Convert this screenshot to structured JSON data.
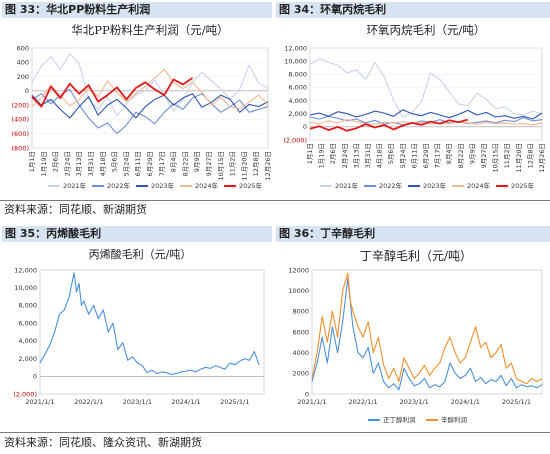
{
  "headers": {
    "fig33": "图 33：华北PP粉料生产利润",
    "fig34": "图 34：环氧丙烷毛利",
    "fig35": "图 35：丙烯酸毛利",
    "fig36": "图 36：丁辛醇毛利"
  },
  "sources": {
    "top": "资料来源：同花顺、新湖期货",
    "bottom": "资料来源：同花顺、隆众资讯、新湖期货"
  },
  "chart_data": [
    {
      "id": "fig33",
      "type": "line",
      "title": "华北PP粉料生产利润（元/吨）",
      "ylim": [
        -800,
        600
      ],
      "yticks": [
        600,
        400,
        200,
        0,
        -200,
        -400,
        -600,
        -800
      ],
      "ytick_labels": [
        "600",
        "400",
        "200",
        "0",
        "(200)",
        "(400)",
        "(600)",
        "(800)"
      ],
      "xtick_labels": [
        "1月1日",
        "1月19日",
        "2月6日",
        "2月24日",
        "3月13日",
        "3月31日",
        "4月18日",
        "5月6日",
        "5月24日",
        "6月11日",
        "6月29日",
        "7月17日",
        "8月4日",
        "8月22日",
        "9月9日",
        "9月27日",
        "10月15日",
        "11月2日",
        "11月20日",
        "12月8日",
        "12月26日"
      ],
      "legend_position": "bottom",
      "series": [
        {
          "name": "2021年",
          "color": "#c9d3ea",
          "values": [
            120,
            350,
            480,
            300,
            520,
            380,
            -120,
            -260,
            -80,
            -350,
            -180,
            -60,
            0,
            150,
            -60,
            -280,
            -120,
            120,
            260,
            140,
            30,
            -120,
            20,
            360,
            110,
            30
          ]
        },
        {
          "name": "2022年",
          "color": "#6f8ed6",
          "values": [
            -120,
            -40,
            -180,
            -60,
            20,
            -200,
            -380,
            -520,
            -450,
            -600,
            -480,
            -300,
            -360,
            -460,
            -300,
            -180,
            -260,
            -100,
            -40,
            -180,
            -300,
            -220,
            -130,
            -300,
            -260,
            -220
          ]
        },
        {
          "name": "2023年",
          "color": "#2e55b0",
          "values": [
            -60,
            -200,
            -120,
            -260,
            -380,
            -220,
            -80,
            -340,
            -200,
            -120,
            -240,
            -380,
            -220,
            -120,
            -60,
            -200,
            -100,
            -40,
            -230,
            -160,
            -60,
            -120,
            -300,
            -190,
            -220,
            -150
          ]
        },
        {
          "name": "2024年",
          "color": "#f2b88f",
          "values": [
            -220,
            -100,
            80,
            -60,
            -210,
            -120,
            40,
            -80,
            140,
            -20,
            -150,
            -40,
            60,
            180,
            300,
            120,
            30,
            120,
            -20,
            -200,
            -90,
            -220,
            -250,
            -160,
            -60,
            -200
          ]
        },
        {
          "name": "2025年",
          "color": "#e31a1c",
          "values": [
            -80,
            -220,
            60,
            -100,
            100,
            -40,
            80,
            -150,
            -60,
            50,
            -120,
            40,
            120,
            20,
            -60,
            160,
            90,
            180
          ]
        }
      ]
    },
    {
      "id": "fig34",
      "type": "line",
      "title": "环氧丙烷毛利（元/吨）",
      "ylim": [
        -2000,
        12000
      ],
      "yticks": [
        12000,
        10000,
        8000,
        6000,
        4000,
        2000,
        0,
        -2000
      ],
      "ytick_labels": [
        "12,000",
        "10,000",
        "8,000",
        "6,000",
        "4,000",
        "2,000",
        "0",
        "(2,000)"
      ],
      "xtick_labels": [
        "1月1日",
        "1月19日",
        "2月6日",
        "2月24日",
        "3月13日",
        "3月31日",
        "4月18日",
        "5月6日",
        "5月24日",
        "6月11日",
        "6月29日",
        "7月17日",
        "8月4日",
        "8月22日",
        "9月9日",
        "9月27日",
        "10月15日",
        "11月2日",
        "11月20日",
        "12月8日",
        "12月26日"
      ],
      "legend_position": "bottom",
      "series": [
        {
          "name": "2021年",
          "color": "#c9d3ea",
          "values": [
            9500,
            10400,
            9800,
            9400,
            8200,
            8700,
            7200,
            9800,
            7600,
            4100,
            1500,
            2200,
            3800,
            8200,
            7200,
            5400,
            3500,
            3200,
            5100,
            4200,
            2800,
            3000,
            2000,
            1800,
            2400,
            2000
          ]
        },
        {
          "name": "2022年",
          "color": "#6f8ed6",
          "values": [
            1500,
            1200,
            1600,
            1300,
            900,
            1200,
            600,
            1000,
            400,
            700,
            300,
            500,
            900,
            700,
            1100,
            600,
            800,
            500,
            700,
            900,
            600,
            1000,
            800,
            1400,
            900,
            1100
          ]
        },
        {
          "name": "2023年",
          "color": "#2e55b0",
          "values": [
            1800,
            2100,
            1600,
            2300,
            2000,
            1500,
            1900,
            2400,
            2100,
            1600,
            2600,
            2000,
            1700,
            2200,
            1800,
            1400,
            1900,
            2500,
            1800,
            2200,
            1500,
            1700,
            1300,
            1600,
            1200,
            2100
          ]
        },
        {
          "name": "2024年",
          "color": "#f2b88f",
          "values": [
            700,
            500,
            900,
            600,
            1100,
            800,
            500,
            400,
            700,
            600,
            800,
            500,
            700,
            400,
            600,
            500,
            800,
            600,
            400,
            700,
            500,
            600,
            400,
            500,
            300,
            600
          ]
        },
        {
          "name": "2025年",
          "color": "#e31a1c",
          "values": [
            -300,
            100,
            -500,
            0,
            -600,
            -200,
            400,
            -100,
            300,
            -400,
            200,
            600,
            300,
            800,
            500,
            1000,
            700,
            1100
          ]
        }
      ]
    },
    {
      "id": "fig35",
      "type": "line",
      "title": "丙烯酸毛利（元/吨）",
      "ylim": [
        -2000,
        12000
      ],
      "yticks": [
        12000,
        10000,
        8000,
        6000,
        4000,
        2000,
        0,
        -2000
      ],
      "ytick_labels": [
        "12,000",
        "10,000",
        "8,000",
        "6,000",
        "4,000",
        "2,000",
        "0",
        "(2,000)"
      ],
      "xtick_labels": [
        "2021/1/1",
        "2022/1/1",
        "2023/1/1",
        "2024/1/1",
        "2025/1/1"
      ],
      "x_start": 2021.0,
      "x_end": 2025.6,
      "series": [
        {
          "name": "",
          "color": "#4a90d9",
          "x": [
            2021.0,
            2021.1,
            2021.2,
            2021.3,
            2021.4,
            2021.5,
            2021.6,
            2021.7,
            2021.75,
            2021.8,
            2021.85,
            2021.9,
            2022.0,
            2022.1,
            2022.2,
            2022.3,
            2022.4,
            2022.5,
            2022.6,
            2022.7,
            2022.8,
            2022.9,
            2023.0,
            2023.1,
            2023.2,
            2023.3,
            2023.4,
            2023.5,
            2023.6,
            2023.7,
            2023.8,
            2023.9,
            2024.0,
            2024.1,
            2024.2,
            2024.3,
            2024.4,
            2024.5,
            2024.6,
            2024.7,
            2024.8,
            2024.9,
            2025.0,
            2025.1,
            2025.2,
            2025.3,
            2025.4,
            2025.5
          ],
          "values": [
            1500,
            2500,
            3500,
            5000,
            7000,
            7500,
            9000,
            11700,
            9500,
            10500,
            8000,
            8500,
            7000,
            8000,
            6500,
            7500,
            5000,
            6000,
            3000,
            3800,
            1800,
            2200,
            1500,
            1200,
            400,
            700,
            300,
            500,
            400,
            200,
            300,
            500,
            600,
            700,
            500,
            800,
            1000,
            900,
            1200,
            1000,
            800,
            1500,
            1300,
            1700,
            2000,
            1800,
            2800,
            1300
          ]
        }
      ]
    },
    {
      "id": "fig36",
      "type": "line",
      "title": "丁辛醇毛利（元/吨）",
      "ylim": [
        0,
        12000
      ],
      "yticks": [
        12000,
        10000,
        8000,
        6000,
        4000,
        2000,
        0
      ],
      "ytick_labels": [
        "12000",
        "10000",
        "8000",
        "6000",
        "4000",
        "2000",
        "0"
      ],
      "xtick_labels": [
        "2021/1/1",
        "2022/1/1",
        "2023/1/1",
        "2024/1/1",
        "2025/1/1"
      ],
      "x_start": 2021.0,
      "x_end": 2025.5,
      "legend_position": "bottom",
      "series": [
        {
          "name": "正丁醇利润",
          "color": "#4a90d9",
          "x": [
            2021.0,
            2021.1,
            2021.2,
            2021.3,
            2021.4,
            2021.5,
            2021.6,
            2021.7,
            2021.75,
            2021.8,
            2021.9,
            2022.0,
            2022.1,
            2022.2,
            2022.3,
            2022.4,
            2022.5,
            2022.6,
            2022.7,
            2022.8,
            2022.9,
            2023.0,
            2023.1,
            2023.2,
            2023.3,
            2023.4,
            2023.5,
            2023.6,
            2023.7,
            2023.8,
            2023.9,
            2024.0,
            2024.1,
            2024.2,
            2024.3,
            2024.4,
            2024.5,
            2024.6,
            2024.7,
            2024.8,
            2024.9,
            2025.0,
            2025.1,
            2025.2,
            2025.3,
            2025.4,
            2025.5
          ],
          "values": [
            1200,
            3000,
            5500,
            3000,
            6500,
            4000,
            7000,
            11200,
            9000,
            6500,
            4000,
            3500,
            4500,
            2000,
            3000,
            1200,
            600,
            1000,
            400,
            2500,
            1500,
            800,
            1000,
            1500,
            600,
            900,
            700,
            1200,
            3000,
            2000,
            1500,
            1800,
            2500,
            1200,
            1600,
            1000,
            1400,
            1200,
            1800,
            800,
            1500,
            600,
            900,
            700,
            800,
            600,
            900
          ]
        },
        {
          "name": "辛醇利润",
          "color": "#f28e2b",
          "x": [
            2021.0,
            2021.1,
            2021.2,
            2021.3,
            2021.4,
            2021.5,
            2021.6,
            2021.7,
            2021.75,
            2021.8,
            2021.9,
            2022.0,
            2022.1,
            2022.2,
            2022.3,
            2022.4,
            2022.5,
            2022.6,
            2022.7,
            2022.8,
            2022.9,
            2023.0,
            2023.1,
            2023.2,
            2023.3,
            2023.4,
            2023.5,
            2023.6,
            2023.7,
            2023.8,
            2023.9,
            2024.0,
            2024.1,
            2024.2,
            2024.3,
            2024.4,
            2024.5,
            2024.6,
            2024.7,
            2024.8,
            2024.9,
            2025.0,
            2025.1,
            2025.2,
            2025.3,
            2025.4,
            2025.5
          ],
          "values": [
            1500,
            4000,
            7500,
            5000,
            8000,
            5500,
            10000,
            11700,
            9000,
            8000,
            6500,
            5500,
            7000,
            4000,
            5500,
            2800,
            1500,
            2500,
            1200,
            3500,
            2500,
            1500,
            2000,
            2800,
            1800,
            2500,
            3000,
            4500,
            5500,
            4000,
            3000,
            3500,
            5000,
            6500,
            4500,
            5000,
            3500,
            4000,
            4800,
            2500,
            3000,
            1500,
            1200,
            1000,
            1500,
            1200,
            1500
          ]
        }
      ]
    }
  ]
}
